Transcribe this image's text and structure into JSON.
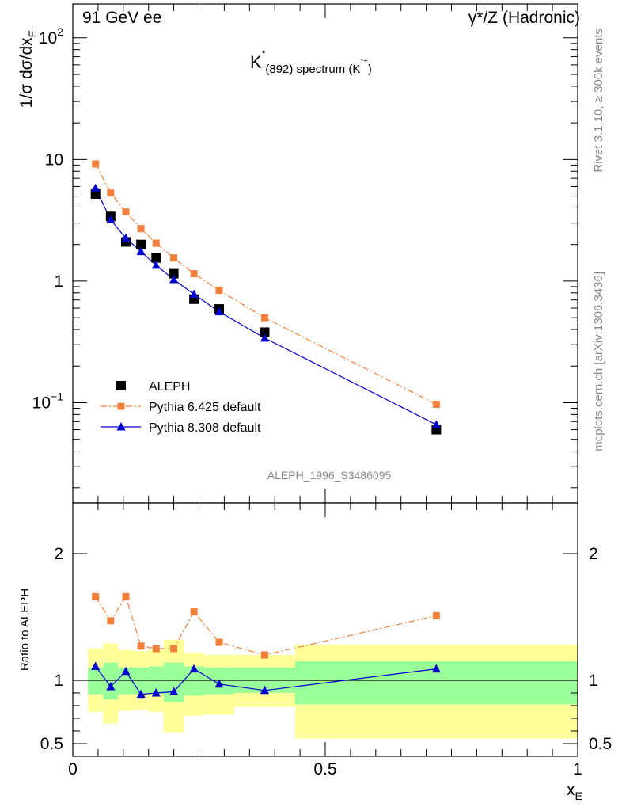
{
  "header": {
    "left": "91 GeV ee",
    "right": "γ*/Z (Hadronic)"
  },
  "side_labels": {
    "top": "Rivet 3.1.10, ≥ 300k events",
    "bottom": "mcplots.cern.ch [arXiv:1306.3436]"
  },
  "chart_data": [
    {
      "type": "scatter",
      "title": "K*(892) spectrum (K*±)",
      "title_parts": {
        "main": "K",
        "sup": "*",
        "sub": "(892)",
        "rest": " spectrum (K",
        "rest_sup": "*±",
        "close": ")"
      },
      "xlabel": "x_E",
      "xlabel_parts": {
        "main": "x",
        "sub": "E"
      },
      "ylabel": "1/σ dσ/dx_E",
      "ylabel_parts": {
        "main": "1/σ dσ/dx",
        "sub": "E"
      },
      "yscale": "log",
      "xlim": [
        0,
        1
      ],
      "ylim": [
        0.015,
        190
      ],
      "yticks": [
        {
          "value": 0.1,
          "base": "10",
          "exp": "−1"
        },
        {
          "value": 1,
          "base": "1",
          "exp": ""
        },
        {
          "value": 10,
          "base": "10",
          "exp": ""
        },
        {
          "value": 100,
          "base": "10",
          "exp": "2"
        }
      ],
      "watermark": "ALEPH_1996_S3486095",
      "legend_position": "bottom-left",
      "x": [
        0.045,
        0.075,
        0.105,
        0.135,
        0.165,
        0.2,
        0.24,
        0.29,
        0.38,
        0.72
      ],
      "series": [
        {
          "name": "ALEPH",
          "color": "#000000",
          "marker": "square",
          "values": [
            5.2,
            3.4,
            2.1,
            2.0,
            1.55,
            1.15,
            0.71,
            0.59,
            0.38,
            0.06
          ]
        },
        {
          "name": "Pythia 6.425 default",
          "color": "#f0803c",
          "marker": "small-square",
          "line": "dashdot",
          "values": [
            9.2,
            5.3,
            3.7,
            2.7,
            2.05,
            1.55,
            1.15,
            0.84,
            0.5,
            0.097
          ]
        },
        {
          "name": "Pythia 8.308 default",
          "color": "#0000cc",
          "marker": "triangle",
          "line": "solid",
          "values": [
            5.8,
            3.2,
            2.25,
            1.75,
            1.35,
            1.03,
            0.78,
            0.56,
            0.34,
            0.066
          ]
        }
      ]
    },
    {
      "type": "line",
      "ylabel": "Ratio to ALEPH",
      "xlim": [
        0,
        1
      ],
      "ylim": [
        0.4,
        2.4
      ],
      "xticks": [
        "0",
        "0.5",
        "1"
      ],
      "yticks": [
        {
          "value": 0.5,
          "label": "0.5"
        },
        {
          "value": 1,
          "label": "1"
        },
        {
          "value": 2,
          "label": "2"
        }
      ],
      "bins": [
        {
          "x0": 0.03,
          "x1": 0.06,
          "stat": [
            0.89,
            1.1
          ],
          "total": [
            0.75,
            1.25
          ]
        },
        {
          "x0": 0.06,
          "x1": 0.09,
          "stat": [
            0.85,
            1.14
          ],
          "total": [
            0.66,
            1.29
          ]
        },
        {
          "x0": 0.09,
          "x1": 0.12,
          "stat": [
            0.89,
            1.1
          ],
          "total": [
            0.76,
            1.24
          ]
        },
        {
          "x0": 0.12,
          "x1": 0.15,
          "stat": [
            0.89,
            1.1
          ],
          "total": [
            0.77,
            1.23
          ]
        },
        {
          "x0": 0.15,
          "x1": 0.18,
          "stat": [
            0.89,
            1.11
          ],
          "total": [
            0.75,
            1.24
          ]
        },
        {
          "x0": 0.18,
          "x1": 0.22,
          "stat": [
            0.83,
            1.14
          ],
          "total": [
            0.59,
            1.32
          ]
        },
        {
          "x0": 0.22,
          "x1": 0.26,
          "stat": [
            0.88,
            1.11
          ],
          "total": [
            0.72,
            1.22
          ]
        },
        {
          "x0": 0.26,
          "x1": 0.32,
          "stat": [
            0.89,
            1.1
          ],
          "total": [
            0.73,
            1.2
          ]
        },
        {
          "x0": 0.32,
          "x1": 0.44,
          "stat": [
            0.9,
            1.1
          ],
          "total": [
            0.79,
            1.2
          ]
        },
        {
          "x0": 0.44,
          "x1": 1.0,
          "stat": [
            0.81,
            1.15
          ],
          "total": [
            0.54,
            1.28
          ]
        }
      ],
      "series": [
        {
          "name": "Pythia 6.425 default",
          "color": "#f0803c",
          "marker": "small-square",
          "line": "dashdot",
          "values": [
            1.66,
            1.47,
            1.66,
            1.27,
            1.25,
            1.25,
            1.54,
            1.3,
            1.2,
            1.51
          ]
        },
        {
          "name": "Pythia 8.308 default",
          "color": "#0000cc",
          "marker": "triangle",
          "line": "solid",
          "values": [
            1.11,
            0.95,
            1.07,
            0.89,
            0.9,
            0.91,
            1.09,
            0.97,
            0.92,
            1.09
          ]
        }
      ]
    }
  ]
}
